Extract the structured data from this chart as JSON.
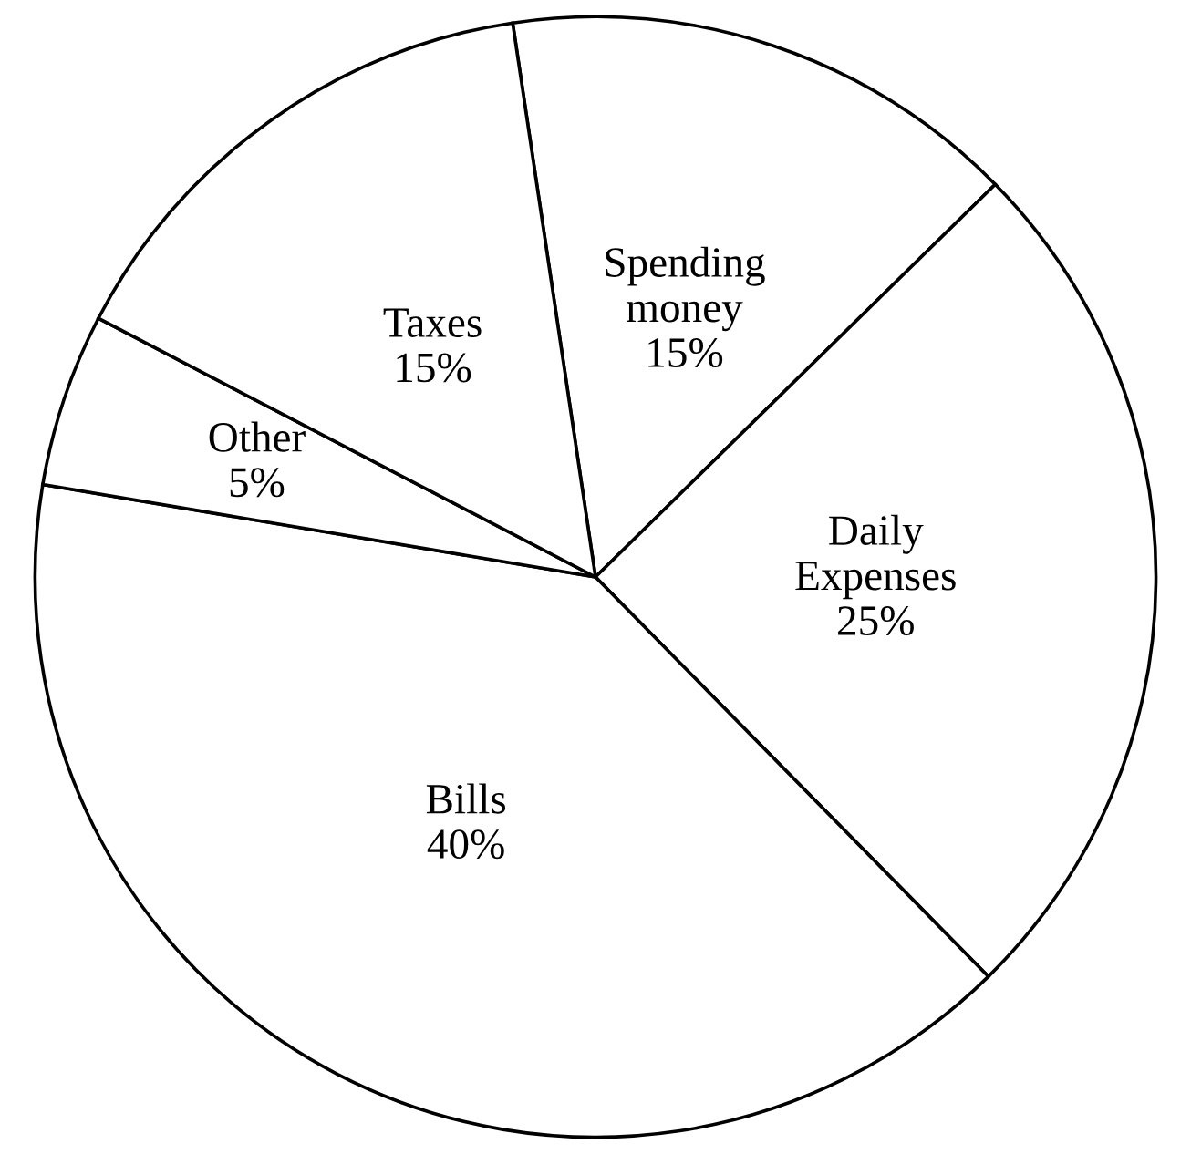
{
  "chart_data": {
    "type": "pie",
    "categories": [
      "Spending\nmoney",
      "Daily\nExpenses",
      "Bills",
      "Other",
      "Taxes"
    ],
    "values": [
      15,
      25,
      40,
      5,
      15
    ],
    "value_labels": [
      "15%",
      "25%",
      "40%",
      "5%",
      "15%"
    ],
    "colors": [
      "#ffffff",
      "#ffffff",
      "#ffffff",
      "#ffffff",
      "#ffffff"
    ],
    "legend": false
  }
}
